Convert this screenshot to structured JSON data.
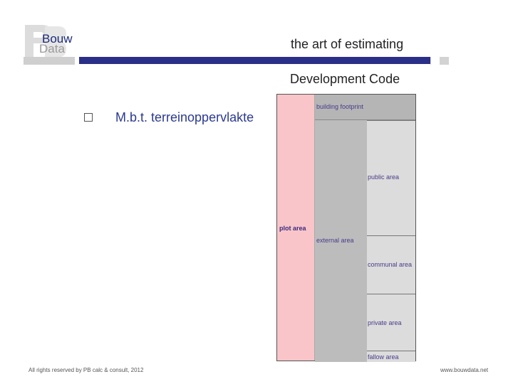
{
  "header": {
    "logo": {
      "line1": "Bouw",
      "line2": "Data"
    },
    "tagline": "the art of estimating",
    "colors": {
      "bar": "#2a2f87",
      "logo_text": "#1c2a78"
    }
  },
  "main": {
    "title": "Development Code",
    "bullet": "M.b.t. terreinoppervlakte"
  },
  "diagram": {
    "plot_area": "plot area",
    "building_footprint": "building footprint",
    "external_area": "external area",
    "public_area": "public area",
    "communal_area": "communal area",
    "private_area": "private area",
    "fallow_area": "fallow area",
    "colors": {
      "plot": "#f9c5c8",
      "external": "#bcbcbc",
      "sub": "#dcdcdc"
    }
  },
  "footer": {
    "rights": "All rights reserved by PB calc & consult, 2012",
    "website": "www.bouwdata.net"
  }
}
